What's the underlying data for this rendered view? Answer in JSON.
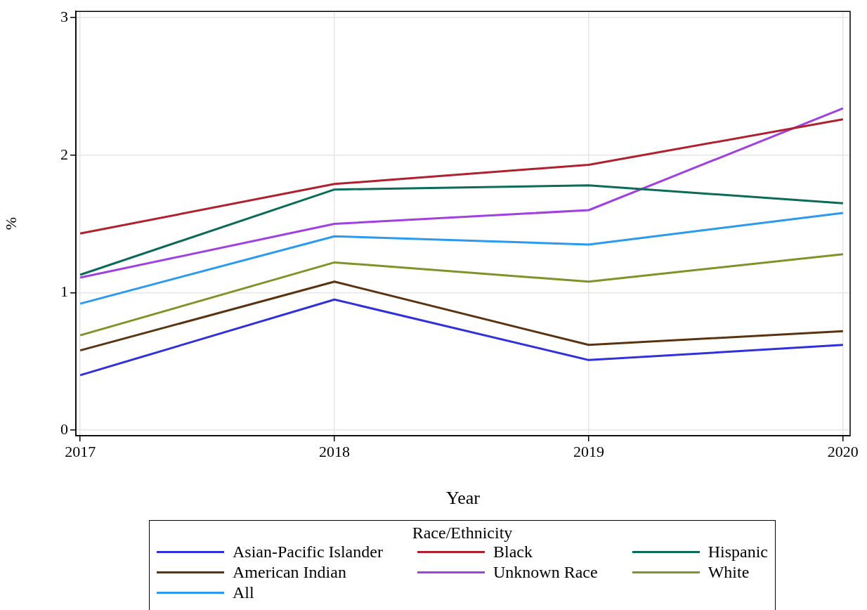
{
  "chart_data": {
    "type": "line",
    "xlabel": "Year",
    "ylabel": "%",
    "legend_title": "Race/Ethnicity",
    "legend": "bottom",
    "grid": true,
    "marker": "none",
    "line_style": "solid",
    "x": [
      2017,
      2018,
      2019,
      2020
    ],
    "xlim": [
      2016.983,
      2020.028
    ],
    "xticks": [
      2017,
      2018,
      2019,
      2020
    ],
    "ylim": [
      -0.04,
      3.045
    ],
    "yticks": [
      0,
      1,
      2,
      3
    ],
    "series": [
      {
        "name": "Asian-Pacific Islander",
        "color": "#3030dd",
        "values": [
          0.4,
          0.95,
          0.51,
          0.62
        ]
      },
      {
        "name": "Black",
        "color": "#b0202e",
        "values": [
          1.43,
          1.79,
          1.93,
          2.26
        ]
      },
      {
        "name": "Hispanic",
        "color": "#0a6b58",
        "values": [
          1.13,
          1.75,
          1.78,
          1.65
        ]
      },
      {
        "name": "American Indian",
        "color": "#5a3410",
        "values": [
          0.58,
          1.08,
          0.62,
          0.72
        ]
      },
      {
        "name": "Unknown Race",
        "color": "#a040e0",
        "values": [
          1.11,
          1.5,
          1.6,
          2.34
        ]
      },
      {
        "name": "White",
        "color": "#7f9428",
        "values": [
          0.69,
          1.22,
          1.08,
          1.28
        ]
      },
      {
        "name": "All",
        "color": "#2a9af0",
        "values": [
          0.92,
          1.41,
          1.35,
          1.58
        ]
      }
    ]
  }
}
